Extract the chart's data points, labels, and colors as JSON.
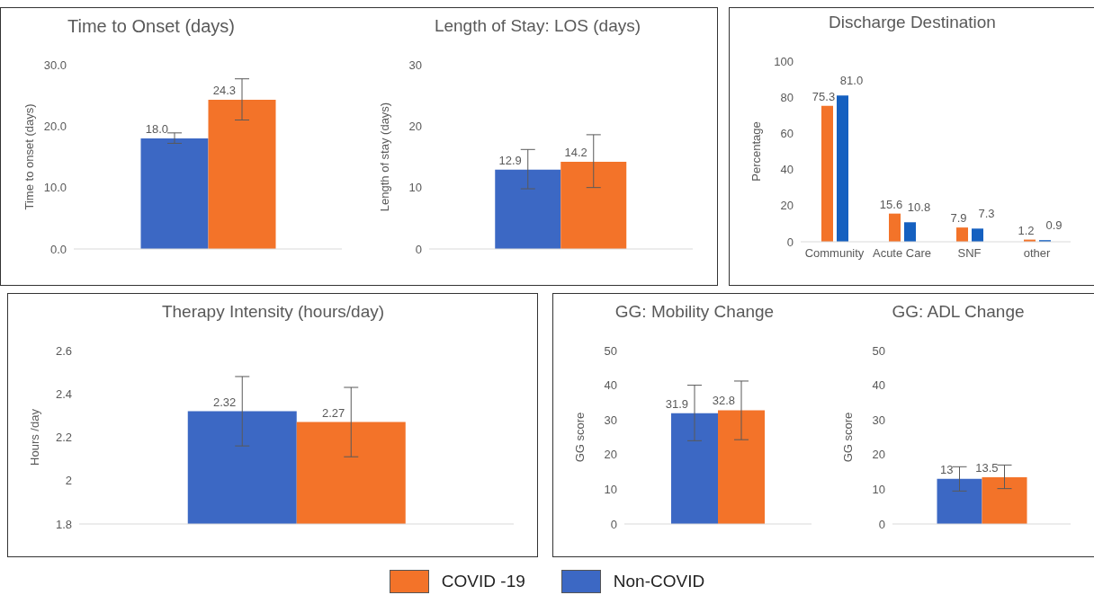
{
  "chart_data": [
    {
      "type": "bar",
      "title": "Time to Onset (days)",
      "ylabel": "Time  to onset (days)",
      "legend": "bottom",
      "categories": [
        null
      ],
      "ylim": [
        0,
        30
      ],
      "yticks": [
        {
          "value": 0,
          "label": "0.0"
        },
        {
          "value": 10,
          "label": "10.0"
        },
        {
          "value": 20,
          "label": "20.0"
        },
        {
          "value": 30,
          "label": "30.0"
        }
      ],
      "series": [
        {
          "name": "Non-COVID",
          "color": "#3c68c4",
          "values": [
            18.0
          ],
          "errors": [
            [
              17.2,
              18.9
            ]
          ],
          "value_labels": [
            "18.0"
          ]
        },
        {
          "name": "COVID -19",
          "color": "#f37329",
          "values": [
            24.3
          ],
          "errors": [
            [
              21.0,
              27.7
            ]
          ],
          "value_labels": [
            "24.3"
          ]
        }
      ]
    },
    {
      "type": "bar",
      "title": "Length of Stay: LOS (days)",
      "ylabel": "Length of stay (days)",
      "categories": [
        null
      ],
      "ylim": [
        0,
        30
      ],
      "yticks": [
        0,
        10,
        20,
        30
      ],
      "series": [
        {
          "color": "#3c68c4",
          "values": [
            12.9
          ],
          "errors": [
            [
              9.8,
              16.2
            ]
          ],
          "value_labels": [
            "12.9"
          ]
        },
        {
          "color": "#f37329",
          "values": [
            14.2
          ],
          "errors": [
            [
              10.0,
              18.6
            ]
          ],
          "value_labels": [
            "14.2"
          ]
        }
      ]
    },
    {
      "type": "bar",
      "title": "Discharge Destination",
      "ylabel": "Percentage",
      "categories": [
        "Community",
        "Acute Care",
        "SNF",
        "other"
      ],
      "ylim": [
        0,
        100
      ],
      "yticks": [
        0,
        20,
        40,
        60,
        80,
        100
      ],
      "series": [
        {
          "color": "#f37329",
          "values": [
            75.3,
            15.6,
            7.9,
            1.2
          ],
          "value_labels": [
            "75.3",
            "15.6",
            "7.9",
            "1.2"
          ]
        },
        {
          "color": "#1560c0",
          "values": [
            81.0,
            10.8,
            7.3,
            0.9
          ],
          "value_labels": [
            "81.0",
            "10.8",
            "7.3",
            "0.9"
          ]
        }
      ]
    },
    {
      "type": "bar",
      "title": "Therapy Intensity (hours/day)",
      "ylabel": "Hours /day",
      "categories": [
        null
      ],
      "ylim": [
        1.8,
        2.6
      ],
      "yticks": [
        1.8,
        2,
        2.2,
        2.4,
        2.6
      ],
      "series": [
        {
          "color": "#3c68c4",
          "values": [
            2.32
          ],
          "errors": [
            [
              2.16,
              2.48
            ]
          ],
          "value_labels": [
            "2.32"
          ]
        },
        {
          "color": "#f37329",
          "values": [
            2.27
          ],
          "errors": [
            [
              2.11,
              2.43
            ]
          ],
          "value_labels": [
            "2.27"
          ]
        }
      ]
    },
    {
      "type": "bar",
      "title": "GG: Mobility Change",
      "ylabel": "GG score",
      "categories": [
        null
      ],
      "ylim": [
        0,
        50
      ],
      "yticks": [
        0,
        10,
        20,
        30,
        40,
        50
      ],
      "series": [
        {
          "color": "#3c68c4",
          "values": [
            31.9
          ],
          "errors": [
            [
              24.0,
              40.0
            ]
          ],
          "value_labels": [
            "31.9"
          ]
        },
        {
          "color": "#f37329",
          "values": [
            32.8
          ],
          "errors": [
            [
              24.3,
              41.2
            ]
          ],
          "value_labels": [
            "32.8"
          ]
        }
      ]
    },
    {
      "type": "bar",
      "title": "GG: ADL Change",
      "ylabel": "GG score",
      "categories": [
        null
      ],
      "ylim": [
        0,
        50
      ],
      "yticks": [
        0,
        10,
        20,
        30,
        40,
        50
      ],
      "series": [
        {
          "color": "#3c68c4",
          "values": [
            13
          ],
          "errors": [
            [
              9.5,
              16.5
            ]
          ],
          "value_labels": [
            "13"
          ]
        },
        {
          "color": "#f37329",
          "values": [
            13.5
          ],
          "errors": [
            [
              10.2,
              17.0
            ]
          ],
          "value_labels": [
            "13.5"
          ]
        }
      ]
    }
  ]
}
